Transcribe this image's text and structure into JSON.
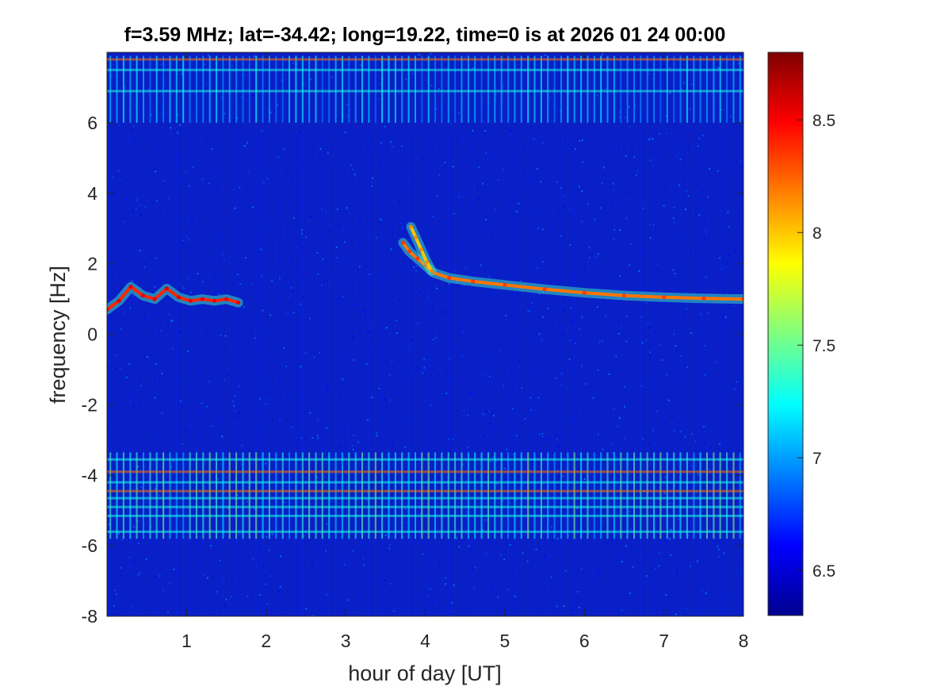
{
  "chart_data": {
    "type": "heatmap",
    "title": "f=3.59 MHz;  lat=-34.42; long=19.22, time=0 is at 2026 01 24 00:00",
    "xlabel": "hour of day [UT]",
    "ylabel": "frequency [Hz]",
    "xlim": [
      0,
      8
    ],
    "ylim": [
      -8,
      8
    ],
    "x_ticks": [
      1,
      2,
      3,
      4,
      5,
      6,
      7,
      8
    ],
    "x_tick_labels": [
      "1",
      "2",
      "3",
      "4",
      "5",
      "6",
      "7",
      "8"
    ],
    "y_ticks": [
      -8,
      -6,
      -4,
      -2,
      0,
      2,
      4,
      6
    ],
    "y_tick_labels": [
      "-8",
      "-6",
      "-4",
      "-2",
      "0",
      "2",
      "4",
      "6"
    ],
    "colormap": "jet",
    "clim": [
      6.3,
      8.8
    ],
    "colorbar": {
      "ticks": [
        6.5,
        7,
        7.5,
        8,
        8.5
      ],
      "tick_labels": [
        "6.5",
        "7",
        "7.5",
        "8",
        "8.5"
      ],
      "placement": "right"
    },
    "grid": false,
    "traces": [
      {
        "description": "Doppler trace",
        "hour": [
          0.0,
          0.15,
          0.3,
          0.45,
          0.6,
          0.75,
          0.9,
          1.05,
          1.2,
          1.35,
          1.5,
          1.65
        ],
        "frequency_hz": [
          0.7,
          0.95,
          1.35,
          1.1,
          1.0,
          1.3,
          1.05,
          0.95,
          1.0,
          0.95,
          1.0,
          0.9
        ],
        "level": 8.4
      },
      {
        "description": "Doppler trace",
        "hour": [
          3.72,
          3.8,
          3.9,
          4.0,
          4.1,
          4.3,
          4.6,
          5.0,
          5.5,
          6.0,
          6.5,
          7.0,
          7.5,
          8.0
        ],
        "frequency_hz": [
          2.6,
          2.35,
          2.15,
          1.95,
          1.75,
          1.6,
          1.5,
          1.4,
          1.28,
          1.18,
          1.1,
          1.05,
          1.02,
          1.0
        ],
        "level": 8.2
      },
      {
        "description": "Doppler trace",
        "hour": [
          3.82,
          3.88,
          3.95,
          4.02,
          4.08
        ],
        "frequency_hz": [
          3.05,
          2.75,
          2.4,
          2.05,
          1.8
        ],
        "level": 8.0
      }
    ],
    "horizontal_bands_hz": [
      7.8,
      7.5,
      6.9,
      -3.55,
      -3.9,
      -4.2,
      -4.45,
      -4.65,
      -4.9,
      -5.15,
      -5.6
    ],
    "background_level": 6.4
  }
}
